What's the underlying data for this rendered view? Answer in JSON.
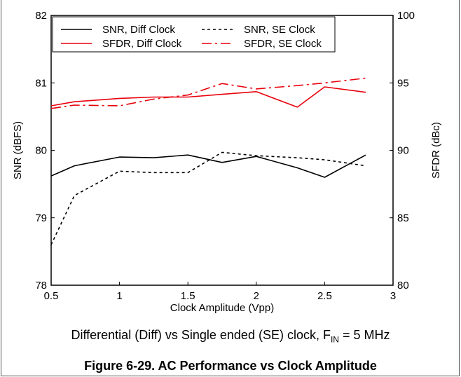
{
  "chart_data": {
    "type": "line",
    "xlabel": "Clock Amplitude (Vpp)",
    "ylabel_left": "SNR (dBFS)",
    "ylabel_right": "SFDR (dBc)",
    "xlim": [
      0.5,
      3
    ],
    "ylim_left": [
      78,
      82
    ],
    "ylim_right": [
      80,
      100
    ],
    "x_ticks": [
      "0.5",
      "1",
      "1.5",
      "2",
      "2.5",
      "3"
    ],
    "y_left_ticks": [
      "78",
      "79",
      "80",
      "81",
      "82"
    ],
    "y_right_ticks": [
      "80",
      "85",
      "90",
      "95",
      "100"
    ],
    "grid": false,
    "legend_position": "top",
    "series": [
      {
        "name": "SNR, Diff Clock",
        "axis": "left",
        "color": "#000000",
        "dash": "solid",
        "x": [
          0.5,
          0.67,
          1.0,
          1.25,
          1.5,
          1.75,
          2.0,
          2.3,
          2.5,
          2.8
        ],
        "y": [
          79.62,
          79.77,
          79.9,
          79.89,
          79.93,
          79.82,
          79.91,
          79.74,
          79.6,
          79.93
        ]
      },
      {
        "name": "SNR, SE Clock",
        "axis": "left",
        "color": "#000000",
        "dash": "dash",
        "x": [
          0.5,
          0.67,
          1.0,
          1.25,
          1.5,
          1.75,
          2.0,
          2.3,
          2.5,
          2.8
        ],
        "y": [
          78.6,
          79.33,
          79.69,
          79.67,
          79.67,
          79.97,
          79.92,
          79.89,
          79.86,
          79.77
        ]
      },
      {
        "name": "SFDR, Diff Clock",
        "axis": "right",
        "color": "#e8000b",
        "dash": "solid",
        "x": [
          0.5,
          0.67,
          1.0,
          1.25,
          1.5,
          1.75,
          2.0,
          2.3,
          2.5,
          2.8
        ],
        "y": [
          93.3,
          93.6,
          93.85,
          93.95,
          93.95,
          94.15,
          94.35,
          93.2,
          94.7,
          94.3
        ]
      },
      {
        "name": "SFDR, SE Clock",
        "axis": "right",
        "color": "#e8000b",
        "dash": "dashdot",
        "x": [
          0.5,
          0.67,
          1.0,
          1.25,
          1.5,
          1.75,
          2.0,
          2.3,
          2.5,
          2.8
        ],
        "y": [
          93.1,
          93.35,
          93.3,
          93.8,
          94.1,
          94.95,
          94.55,
          94.8,
          95.0,
          95.35
        ]
      }
    ]
  },
  "caption": {
    "text_before": "Differential (Diff) vs Single ended (SE) clock, F",
    "subscript": "IN",
    "text_after": " = 5 MHz"
  },
  "figure_title": "Figure 6-29. AC Performance vs Clock Amplitude"
}
